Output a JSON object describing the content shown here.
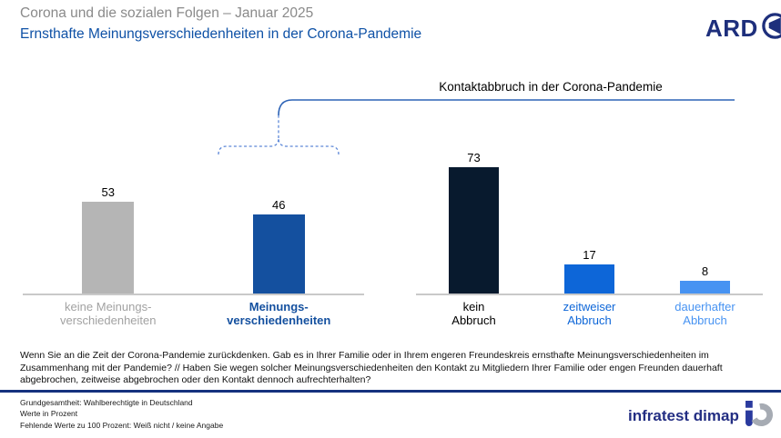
{
  "header": {
    "title": "Corona und die sozialen Folgen – Januar 2025",
    "subtitle": "Ernsthafte Meinungsverschiedenheiten in der Corona-Pandemie",
    "ard_logo_text": "ARD"
  },
  "colors": {
    "title_gray": "#8a8a8a",
    "subtitle_blue": "#0e51a6",
    "divider_blue": "#15317e",
    "axis_gray": "#c9c9c9"
  },
  "chart_data": [
    {
      "type": "bar",
      "title": "",
      "categories": [
        "keine Meinungsverschiedenheiten",
        "Meinungsverschiedenheiten"
      ],
      "category_lines": [
        [
          "keine Meinungs-",
          "verschiedenheiten"
        ],
        [
          "Meinungs-",
          "verschiedenheiten"
        ]
      ],
      "values": [
        53,
        46
      ],
      "bar_colors": [
        "#b5b5b5",
        "#14509f"
      ],
      "label_colors": [
        "#a2a2a2",
        "#14509f"
      ],
      "ylim": [
        0,
        100
      ],
      "unit": "Prozent",
      "grid": false,
      "legend": false
    },
    {
      "type": "bar",
      "title": "Kontaktabbruch in der Corona-Pandemie",
      "categories": [
        "kein Abbruch",
        "zeitweiser Abbruch",
        "dauerhafter Abbruch"
      ],
      "category_lines": [
        [
          "kein",
          "Abbruch"
        ],
        [
          "zeitweiser",
          "Abbruch"
        ],
        [
          "dauerhafter",
          "Abbruch"
        ]
      ],
      "values": [
        73,
        17,
        8
      ],
      "bar_colors": [
        "#081a2e",
        "#0d66d8",
        "#4793f2"
      ],
      "label_colors": [
        "#000000",
        "#0d66d8",
        "#4793f2"
      ],
      "ylim": [
        0,
        100
      ],
      "unit": "Prozent",
      "grid": false,
      "legend": false
    }
  ],
  "footer": {
    "question_lines": [
      "Wenn Sie an die Zeit der Corona-Pandemie zurückdenken. Gab es in Ihrer Familie oder in Ihrem engeren Freundeskreis ernsthafte Meinungsverschiedenheiten im",
      "Zusammenhang mit der Pandemie? // Haben Sie wegen solcher Meinungsverschiedenheiten den Kontakt zu Mitgliedern Ihrer Familie oder engen Freunden dauerhaft",
      "abgebrochen, zeitweise abgebrochen oder den Kontakt dennoch aufrechterhalten?"
    ],
    "source_lines": [
      "Grundgesamtheit: Wahlberechtigte in Deutschland",
      "Werte in Prozent",
      "Fehlende Werte zu 100 Prozent: Weiß nicht / keine Angabe"
    ],
    "brand": "infratest dimap"
  }
}
